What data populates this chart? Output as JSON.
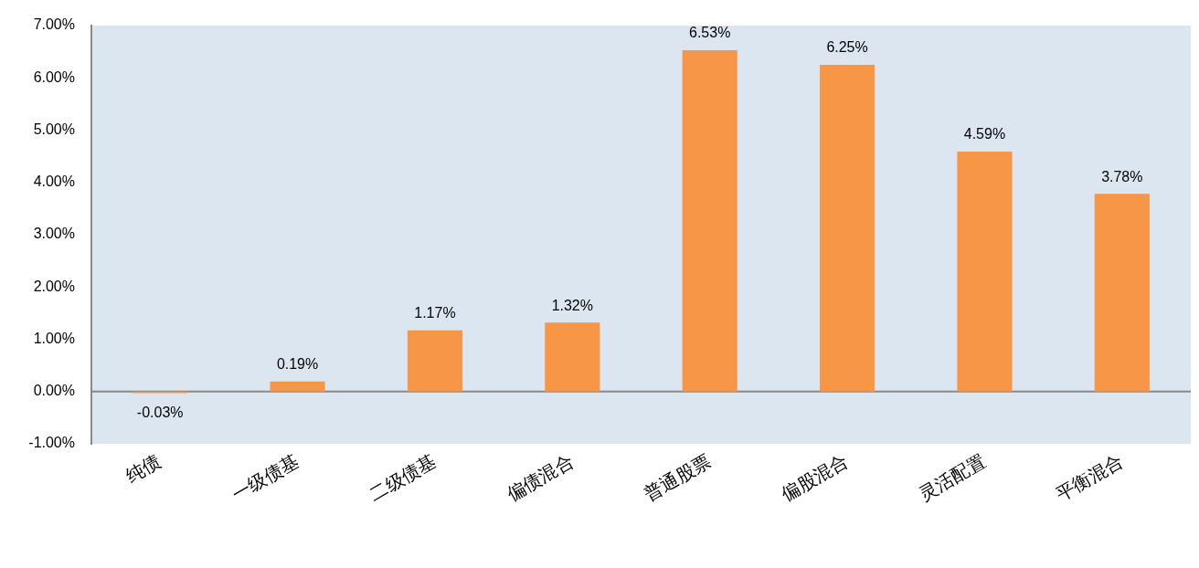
{
  "chart_data": {
    "type": "bar",
    "categories": [
      "纯债",
      "一级债基",
      "二级债基",
      "偏债混合",
      "普通股票",
      "偏股混合",
      "灵活配置",
      "平衡混合"
    ],
    "values": [
      -0.03,
      0.19,
      1.17,
      1.32,
      6.53,
      6.25,
      4.59,
      3.78
    ],
    "value_labels": [
      "-0.03%",
      "0.19%",
      "1.17%",
      "1.32%",
      "6.53%",
      "6.25%",
      "4.59%",
      "3.78%"
    ],
    "color": "#f79646",
    "ylim": [
      -1,
      7
    ],
    "yticks": [
      {
        "value": -1,
        "label": "-1.00%"
      },
      {
        "value": 0,
        "label": "0.00%"
      },
      {
        "value": 1,
        "label": "1.00%"
      },
      {
        "value": 2,
        "label": "2.00%"
      },
      {
        "value": 3,
        "label": "3.00%"
      },
      {
        "value": 4,
        "label": "4.00%"
      },
      {
        "value": 5,
        "label": "5.00%"
      },
      {
        "value": 6,
        "label": "6.00%"
      },
      {
        "value": 7,
        "label": "7.00%"
      }
    ],
    "ref_lines": [
      {
        "axis": "y",
        "value": 0,
        "color": "#898989",
        "line_style": "solid"
      }
    ],
    "legend": false,
    "grid": false
  }
}
